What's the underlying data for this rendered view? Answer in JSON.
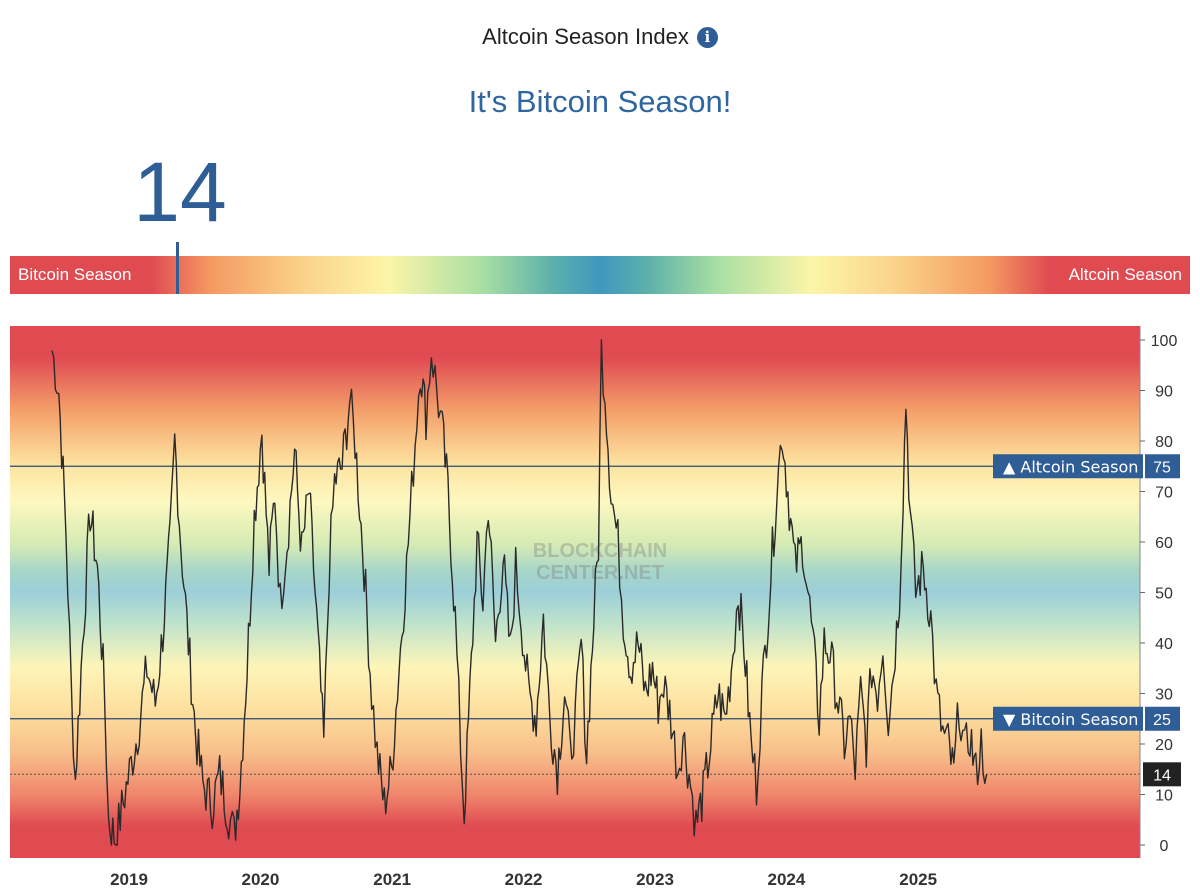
{
  "header": {
    "title": "Altcoin Season Index",
    "info_icon": "info-icon",
    "headline": "It's Bitcoin Season!"
  },
  "current_value": "14",
  "gauge": {
    "left_label": "Bitcoin Season",
    "right_label": "Altcoin Season",
    "value": 14
  },
  "colors": {
    "accent_blue": "#2f5d95",
    "headline_blue": "#2f66a0",
    "red": "#e04b52",
    "orange": "#f59a62",
    "yellow": "#fcf5a9",
    "green": "#a9dfa3",
    "blue": "#3e98c0"
  },
  "chart_data": {
    "type": "line",
    "title": "",
    "xlabel": "",
    "ylabel": "",
    "ylim": [
      0,
      100
    ],
    "y_ticks": [
      0,
      10,
      20,
      30,
      40,
      50,
      60,
      70,
      80,
      90,
      100
    ],
    "x_ticks": [
      "2019",
      "2020",
      "2021",
      "2022",
      "2023",
      "2024",
      "2025"
    ],
    "reference_lines": [
      {
        "value": 75,
        "label": "▲ Altcoin Season",
        "value_label": "75"
      },
      {
        "value": 25,
        "label": "▼ Bitcoin Season",
        "value_label": "25"
      }
    ],
    "current_marker": {
      "value": 14,
      "label": "14"
    },
    "watermark": [
      "BLOCKCHAIN",
      "CENTER.NET"
    ],
    "series": [
      {
        "points": [
          [
            "2018-06-01",
            98
          ],
          [
            "2018-06-20",
            90
          ],
          [
            "2018-07-10",
            62
          ],
          [
            "2018-07-25",
            30
          ],
          [
            "2018-08-05",
            13
          ],
          [
            "2018-08-25",
            40
          ],
          [
            "2018-09-15",
            66
          ],
          [
            "2018-10-05",
            55
          ],
          [
            "2018-10-25",
            30
          ],
          [
            "2018-11-05",
            5
          ],
          [
            "2018-11-25",
            1
          ],
          [
            "2018-12-20",
            10
          ],
          [
            "2019-01-25",
            22
          ],
          [
            "2019-02-20",
            35
          ],
          [
            "2019-03-15",
            28
          ],
          [
            "2019-04-05",
            42
          ],
          [
            "2019-04-25",
            60
          ],
          [
            "2019-05-08",
            80
          ],
          [
            "2019-05-25",
            60
          ],
          [
            "2019-06-15",
            40
          ],
          [
            "2019-07-05",
            22
          ],
          [
            "2019-07-25",
            12
          ],
          [
            "2019-08-20",
            8
          ],
          [
            "2019-09-10",
            14
          ],
          [
            "2019-10-05",
            6
          ],
          [
            "2019-10-20",
            2
          ],
          [
            "2019-11-05",
            12
          ],
          [
            "2019-11-25",
            35
          ],
          [
            "2019-12-15",
            65
          ],
          [
            "2020-01-05",
            82
          ],
          [
            "2020-01-25",
            55
          ],
          [
            "2020-02-10",
            70
          ],
          [
            "2020-02-25",
            48
          ],
          [
            "2020-03-15",
            60
          ],
          [
            "2020-04-05",
            78
          ],
          [
            "2020-04-25",
            58
          ],
          [
            "2020-05-15",
            70
          ],
          [
            "2020-06-05",
            45
          ],
          [
            "2020-06-25",
            20
          ],
          [
            "2020-07-10",
            55
          ],
          [
            "2020-07-25",
            72
          ],
          [
            "2020-08-15",
            75
          ],
          [
            "2020-09-05",
            88
          ],
          [
            "2020-09-20",
            80
          ],
          [
            "2020-10-15",
            55
          ],
          [
            "2020-11-05",
            30
          ],
          [
            "2020-11-20",
            18
          ],
          [
            "2020-12-10",
            8
          ],
          [
            "2020-12-30",
            15
          ],
          [
            "2021-01-20",
            35
          ],
          [
            "2021-02-10",
            55
          ],
          [
            "2021-03-01",
            75
          ],
          [
            "2021-03-20",
            95
          ],
          [
            "2021-04-05",
            85
          ],
          [
            "2021-04-20",
            98
          ],
          [
            "2021-05-05",
            90
          ],
          [
            "2021-05-20",
            82
          ],
          [
            "2021-06-05",
            70
          ],
          [
            "2021-06-25",
            45
          ],
          [
            "2021-07-10",
            20
          ],
          [
            "2021-07-20",
            6
          ],
          [
            "2021-08-05",
            30
          ],
          [
            "2021-08-25",
            60
          ],
          [
            "2021-09-10",
            48
          ],
          [
            "2021-09-25",
            68
          ],
          [
            "2021-10-15",
            40
          ],
          [
            "2021-11-05",
            57
          ],
          [
            "2021-11-25",
            38
          ],
          [
            "2021-12-10",
            55
          ],
          [
            "2021-12-25",
            45
          ],
          [
            "2022-01-15",
            30
          ],
          [
            "2022-02-05",
            25
          ],
          [
            "2022-02-25",
            45
          ],
          [
            "2022-03-15",
            25
          ],
          [
            "2022-04-05",
            15
          ],
          [
            "2022-04-25",
            30
          ],
          [
            "2022-05-10",
            18
          ],
          [
            "2022-05-25",
            25
          ],
          [
            "2022-06-10",
            40
          ],
          [
            "2022-06-25",
            18
          ],
          [
            "2022-07-15",
            45
          ],
          [
            "2022-07-28",
            60
          ],
          [
            "2022-08-05",
            98
          ],
          [
            "2022-08-15",
            90
          ],
          [
            "2022-09-01",
            70
          ],
          [
            "2022-09-20",
            60
          ],
          [
            "2022-10-05",
            45
          ],
          [
            "2022-10-25",
            35
          ],
          [
            "2022-11-15",
            40
          ],
          [
            "2022-12-05",
            30
          ],
          [
            "2022-12-25",
            35
          ],
          [
            "2023-01-10",
            28
          ],
          [
            "2023-01-25",
            32
          ],
          [
            "2023-02-15",
            25
          ],
          [
            "2023-03-05",
            15
          ],
          [
            "2023-03-20",
            22
          ],
          [
            "2023-04-10",
            12
          ],
          [
            "2023-04-25",
            4
          ],
          [
            "2023-05-15",
            10
          ],
          [
            "2023-06-05",
            20
          ],
          [
            "2023-06-25",
            30
          ],
          [
            "2023-07-15",
            25
          ],
          [
            "2023-08-01",
            35
          ],
          [
            "2023-08-20",
            50
          ],
          [
            "2023-09-05",
            40
          ],
          [
            "2023-09-25",
            20
          ],
          [
            "2023-10-10",
            12
          ],
          [
            "2023-10-25",
            30
          ],
          [
            "2023-11-15",
            50
          ],
          [
            "2023-12-05",
            70
          ],
          [
            "2023-12-20",
            82
          ],
          [
            "2024-01-05",
            70
          ],
          [
            "2024-01-25",
            55
          ],
          [
            "2024-02-15",
            60
          ],
          [
            "2024-03-01",
            50
          ],
          [
            "2024-03-15",
            40
          ],
          [
            "2024-04-01",
            25
          ],
          [
            "2024-04-15",
            40
          ],
          [
            "2024-05-01",
            38
          ],
          [
            "2024-05-20",
            30
          ],
          [
            "2024-06-10",
            20
          ],
          [
            "2024-06-25",
            25
          ],
          [
            "2024-07-10",
            15
          ],
          [
            "2024-07-25",
            30
          ],
          [
            "2024-08-10",
            20
          ],
          [
            "2024-08-25",
            35
          ],
          [
            "2024-09-10",
            30
          ],
          [
            "2024-09-25",
            40
          ],
          [
            "2024-10-10",
            25
          ],
          [
            "2024-10-25",
            35
          ],
          [
            "2024-11-10",
            50
          ],
          [
            "2024-11-20",
            70
          ],
          [
            "2024-11-28",
            88
          ],
          [
            "2024-12-10",
            65
          ],
          [
            "2024-12-25",
            50
          ],
          [
            "2025-01-15",
            55
          ],
          [
            "2025-02-05",
            45
          ],
          [
            "2025-02-20",
            30
          ],
          [
            "2025-03-10",
            22
          ],
          [
            "2025-03-25",
            20
          ],
          [
            "2025-04-10",
            14
          ],
          [
            "2025-04-25",
            28
          ],
          [
            "2025-05-10",
            18
          ],
          [
            "2025-05-25",
            22
          ],
          [
            "2025-06-10",
            14
          ],
          [
            "2025-06-25",
            20
          ],
          [
            "2025-07-10",
            14
          ]
        ]
      }
    ]
  }
}
